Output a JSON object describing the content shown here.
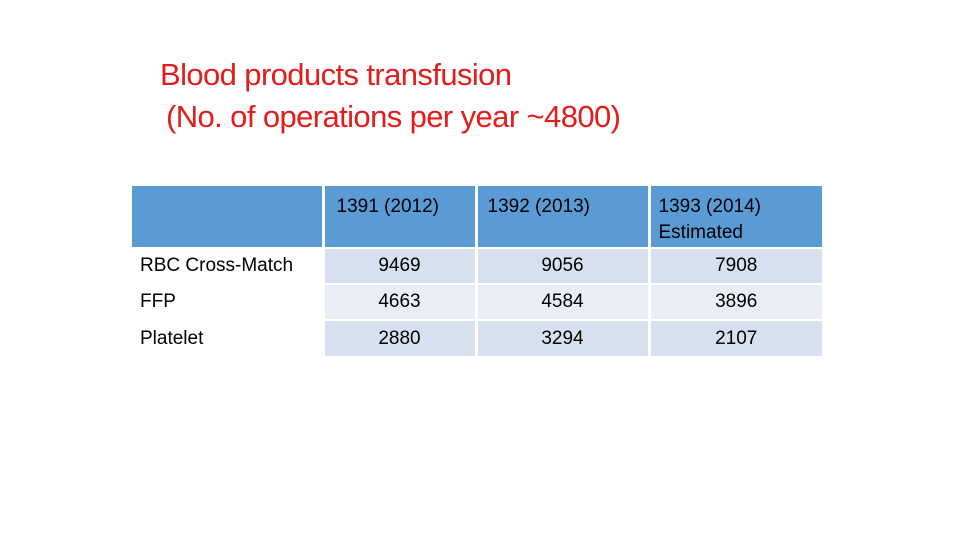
{
  "title": {
    "line1": "Blood products transfusion",
    "line2": "(No. of operations per year ~4800)"
  },
  "table": {
    "columns": [
      "",
      "1391 (2012)",
      "1392 (2013)",
      "1393 (2014)",
      "Estimated"
    ],
    "rows": [
      {
        "label": "RBC Cross-Match",
        "values": [
          "9469",
          "9056",
          "7908"
        ]
      },
      {
        "label": "FFP",
        "values": [
          "4663",
          "4584",
          "3896"
        ]
      },
      {
        "label": "Platelet",
        "values": [
          "2880",
          "3294",
          "2107"
        ]
      }
    ]
  },
  "colors": {
    "title": "#e31c1c",
    "header_bg": "#5b9bd5",
    "cell_bg": "#d6e0ef",
    "cell_bg_alt": "#e9eef6"
  }
}
